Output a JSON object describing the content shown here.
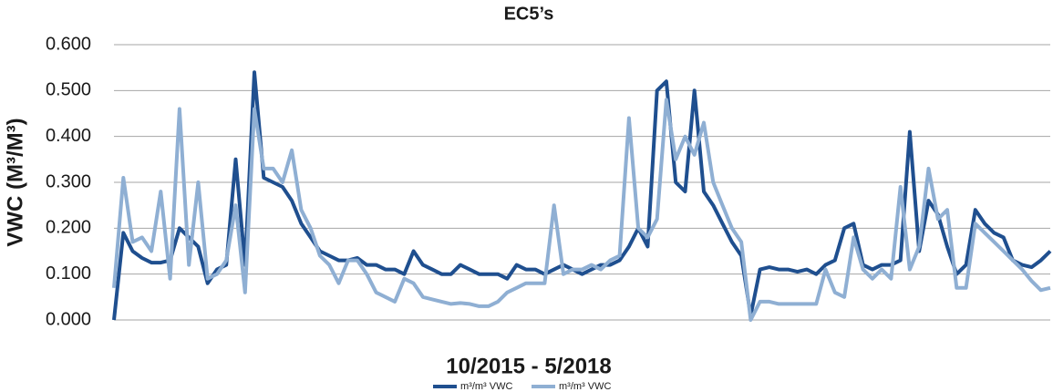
{
  "chart_data": {
    "type": "line",
    "title": "EC5’s",
    "x_label": "10/2015 - 5/2018",
    "y_label": "VWC (M³/M³)",
    "ylim": [
      0,
      0.6
    ],
    "yticks": [
      {
        "value": 0,
        "label": "0.000"
      },
      {
        "value": 0.1,
        "label": "0.100"
      },
      {
        "value": 0.2,
        "label": "0.200"
      },
      {
        "value": 0.3,
        "label": "0.300"
      },
      {
        "value": 0.4,
        "label": "0.400"
      },
      {
        "value": 0.5,
        "label": "0.500"
      },
      {
        "value": 0.6,
        "label": "0.600"
      }
    ],
    "grid": true,
    "legend": "bottom",
    "series": [
      {
        "name": "m³/m³ VWC",
        "color": "#1f4f8f",
        "values": [
          0.0,
          0.19,
          0.15,
          0.135,
          0.125,
          0.125,
          0.13,
          0.2,
          0.18,
          0.16,
          0.08,
          0.11,
          0.12,
          0.35,
          0.12,
          0.54,
          0.31,
          0.3,
          0.29,
          0.26,
          0.21,
          0.18,
          0.15,
          0.14,
          0.13,
          0.13,
          0.135,
          0.12,
          0.12,
          0.11,
          0.11,
          0.1,
          0.15,
          0.12,
          0.11,
          0.1,
          0.1,
          0.12,
          0.11,
          0.1,
          0.1,
          0.1,
          0.09,
          0.12,
          0.11,
          0.11,
          0.1,
          0.11,
          0.12,
          0.11,
          0.1,
          0.11,
          0.12,
          0.12,
          0.13,
          0.16,
          0.2,
          0.16,
          0.5,
          0.52,
          0.3,
          0.28,
          0.5,
          0.28,
          0.25,
          0.21,
          0.17,
          0.14,
          0.01,
          0.11,
          0.115,
          0.11,
          0.11,
          0.105,
          0.11,
          0.1,
          0.12,
          0.13,
          0.2,
          0.21,
          0.12,
          0.11,
          0.12,
          0.12,
          0.13,
          0.41,
          0.15,
          0.26,
          0.23,
          0.16,
          0.1,
          0.12,
          0.24,
          0.21,
          0.19,
          0.18,
          0.13,
          0.12,
          0.115,
          0.13,
          0.15
        ]
      },
      {
        "name": "m³/m³ VWC",
        "color": "#8fafd3",
        "values": [
          0.07,
          0.31,
          0.17,
          0.18,
          0.15,
          0.28,
          0.09,
          0.46,
          0.12,
          0.3,
          0.09,
          0.1,
          0.13,
          0.25,
          0.06,
          0.46,
          0.33,
          0.33,
          0.3,
          0.37,
          0.24,
          0.2,
          0.14,
          0.12,
          0.08,
          0.13,
          0.13,
          0.1,
          0.06,
          0.05,
          0.04,
          0.09,
          0.08,
          0.05,
          0.045,
          0.04,
          0.035,
          0.037,
          0.035,
          0.03,
          0.03,
          0.04,
          0.06,
          0.07,
          0.08,
          0.08,
          0.08,
          0.25,
          0.1,
          0.11,
          0.11,
          0.12,
          0.11,
          0.13,
          0.14,
          0.44,
          0.2,
          0.18,
          0.22,
          0.48,
          0.35,
          0.4,
          0.36,
          0.43,
          0.3,
          0.25,
          0.2,
          0.17,
          0.0,
          0.04,
          0.04,
          0.035,
          0.035,
          0.035,
          0.035,
          0.035,
          0.11,
          0.06,
          0.05,
          0.18,
          0.11,
          0.09,
          0.11,
          0.09,
          0.29,
          0.11,
          0.16,
          0.33,
          0.22,
          0.24,
          0.07,
          0.07,
          0.21,
          0.19,
          0.17,
          0.15,
          0.13,
          0.11,
          0.085,
          0.065,
          0.07
        ]
      }
    ]
  }
}
